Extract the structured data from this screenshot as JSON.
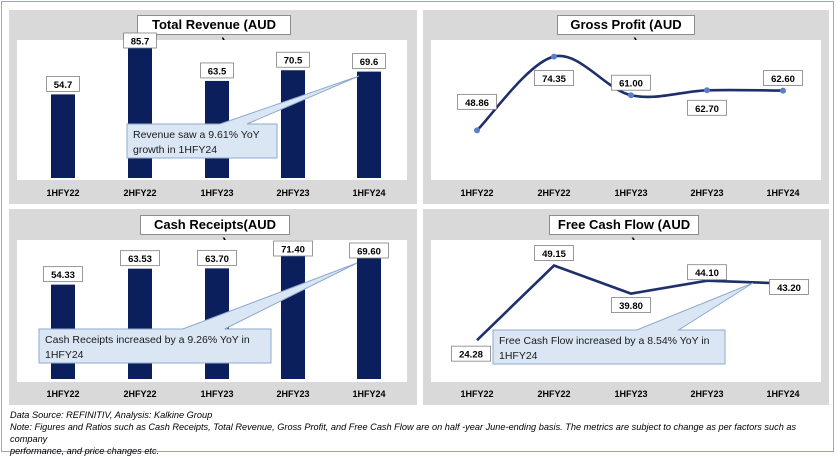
{
  "colors": {
    "bar": "#0b1f5c",
    "line": "#1f2f6b",
    "marker": "#5b7fc7",
    "callout_fill": "#dbe6f4",
    "callout_border": "#8ea9cf",
    "panel_bg": "#d9d9d9"
  },
  "chart_data": [
    {
      "type": "bar",
      "title": "Total Revenue (AUD mn)",
      "categories": [
        "1HFY22",
        "2HFY22",
        "1HFY23",
        "2HFY23",
        "1HFY24"
      ],
      "values": [
        54.7,
        85.7,
        63.5,
        70.5,
        69.6
      ],
      "value_labels": [
        "54.7",
        "85.7",
        "63.5",
        "70.5",
        "69.6"
      ],
      "ylim": [
        0,
        85.7
      ],
      "callout": [
        "Revenue saw a 9.61% YoY",
        "growth in 1HFY24"
      ]
    },
    {
      "type": "line",
      "title": "Gross Profit (AUD mn)",
      "categories": [
        "1HFY22",
        "2HFY22",
        "1HFY23",
        "2HFY23",
        "1HFY24"
      ],
      "values": [
        48.86,
        74.35,
        61.0,
        62.7,
        62.6
      ],
      "value_labels": [
        "48.86",
        "74.35",
        "61.00",
        "62.70",
        "62.60"
      ],
      "ylim": [
        40,
        78
      ]
    },
    {
      "type": "bar",
      "title": "Cash Receipts(AUD mn)",
      "categories": [
        "1HFY22",
        "2HFY22",
        "1HFY23",
        "2HFY23",
        "1HFY24"
      ],
      "values": [
        54.33,
        63.53,
        63.7,
        71.4,
        69.6
      ],
      "value_labels": [
        "54.33",
        "63.53",
        "63.70",
        "71.40",
        "69.60"
      ],
      "ylim": [
        0,
        71.4
      ],
      "callout": [
        "Cash Receipts increased by a 9.26% YoY in",
        "1HFY24"
      ]
    },
    {
      "type": "line",
      "title": "Free Cash Flow (AUD mn)",
      "categories": [
        "1HFY22",
        "2HFY22",
        "1HFY23",
        "2HFY23",
        "1HFY24"
      ],
      "values": [
        24.28,
        49.15,
        39.8,
        44.1,
        43.2
      ],
      "value_labels": [
        "24.28",
        "49.15",
        "39.80",
        "44.10",
        "43.20"
      ],
      "ylim": [
        18,
        52
      ],
      "callout": [
        "Free Cash Flow increased by a 8.54% YoY in",
        "1HFY24"
      ]
    }
  ],
  "footer": {
    "line1": "Data Source: REFINITIV, Analysis: Kalkine Group",
    "line2": "Note: Figures and Ratios such as Cash Receipts, Total Revenue, Gross Profit, and Free Cash Flow are on half -year June-ending basis. The metrics are subject to change as per factors such as company",
    "line3": "performance, and price changes etc."
  }
}
